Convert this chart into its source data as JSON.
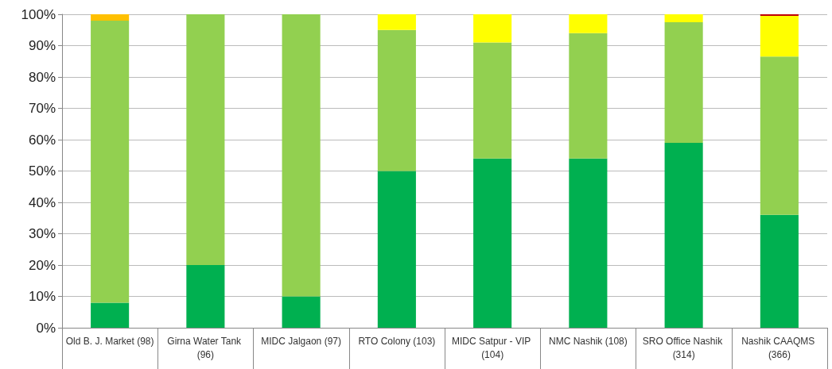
{
  "chart_data": {
    "type": "bar",
    "stacked": true,
    "categories": [
      "Old B. J. Market (98)",
      "Girna Water Tank (96)",
      "MIDC Jalgaon (97)",
      "RTO Colony (103)",
      "MIDC Satpur - VIP (104)",
      "NMC Nashik (108)",
      "SRO Office Nashik (314)",
      "Nashik CAAQMS (366)"
    ],
    "series": [
      {
        "color": "#00b050",
        "values": [
          8,
          20,
          10,
          50,
          54,
          54,
          59,
          36
        ]
      },
      {
        "color": "#92d050",
        "values": [
          90,
          80,
          90,
          45,
          37,
          40,
          38.5,
          50.5
        ]
      },
      {
        "color": "#ffff00",
        "values": [
          null,
          null,
          null,
          5,
          9,
          6,
          2.5,
          13
        ]
      },
      {
        "color": "#ffc000",
        "values": [
          2,
          null,
          null,
          null,
          null,
          null,
          null,
          null
        ]
      },
      {
        "color": "#c00000",
        "values": [
          null,
          null,
          null,
          null,
          null,
          null,
          null,
          0.5
        ]
      }
    ],
    "ylim": [
      0,
      100
    ],
    "yticks": [
      {
        "value": 0,
        "label": "0%"
      },
      {
        "value": 10,
        "label": "10%"
      },
      {
        "value": 20,
        "label": "20%"
      },
      {
        "value": 30,
        "label": "30%"
      },
      {
        "value": 40,
        "label": "40%"
      },
      {
        "value": 50,
        "label": "50%"
      },
      {
        "value": 60,
        "label": "60%"
      },
      {
        "value": 70,
        "label": "70%"
      },
      {
        "value": 80,
        "label": "80%"
      },
      {
        "value": 90,
        "label": "90%"
      },
      {
        "value": 100,
        "label": "100%"
      }
    ],
    "grid": "y"
  }
}
